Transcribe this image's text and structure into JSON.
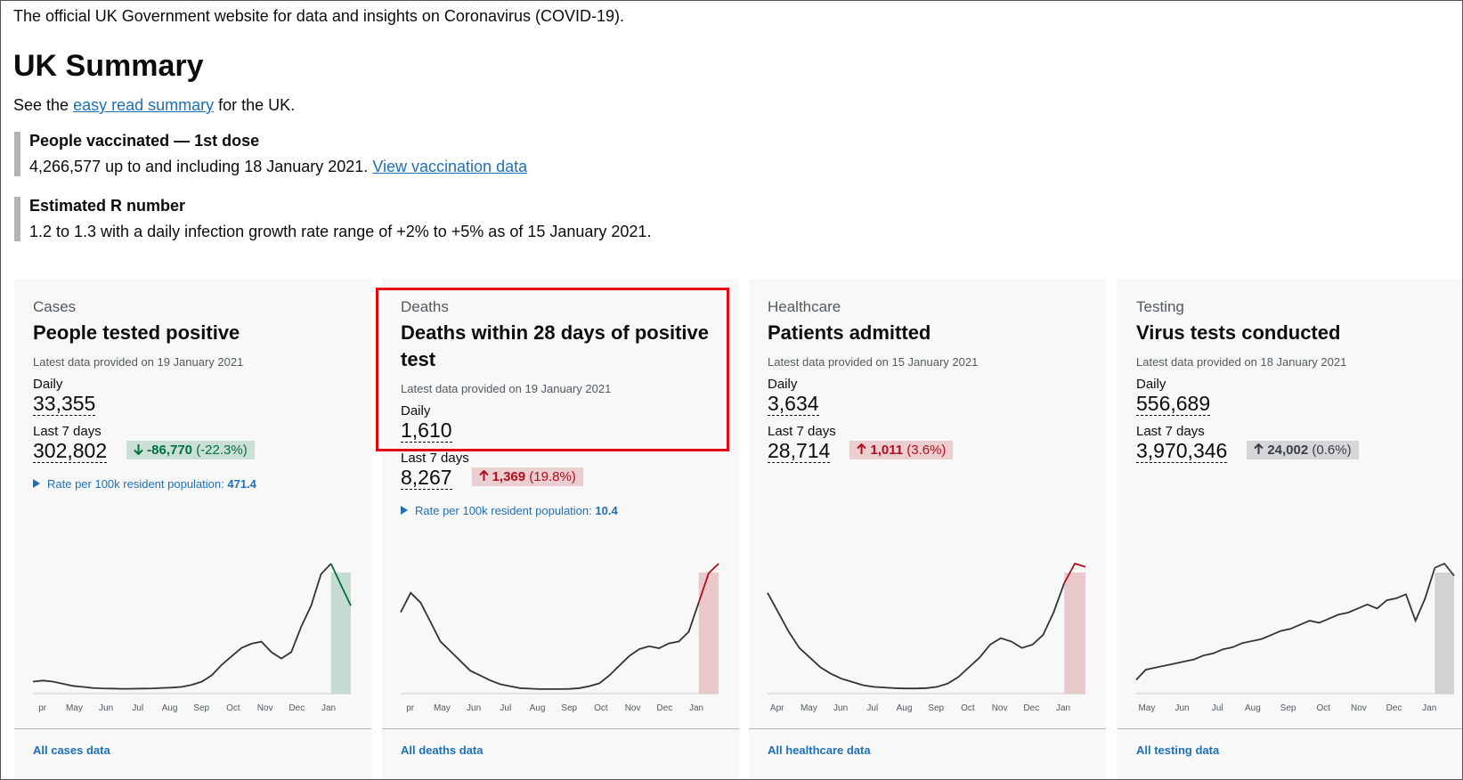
{
  "header": {
    "tagline": "The official UK Government website for data and insights on Coronavirus (COVID-19).",
    "title": "UK Summary",
    "intro_before": "See the",
    "intro_link": "easy read summary",
    "intro_after": "for the UK."
  },
  "notices": [
    {
      "title": "People vaccinated — 1st dose",
      "text": "4,266,577 up to and including 18 January 2021.",
      "link": "View vaccination data"
    },
    {
      "title": "Estimated R number",
      "text": "1.2 to 1.3 with a daily infection growth rate range of +2% to +5% as of 15 January 2021."
    }
  ],
  "cards": [
    {
      "category": "Cases",
      "title": "People tested positive",
      "latest": "Latest data provided on 19 January 2021",
      "daily_label": "Daily",
      "daily": "33,355",
      "week_label": "Last 7 days",
      "week": "302,802",
      "change": "-86,770",
      "change_pct": "(-22.3%)",
      "direction": "down",
      "color": "#00703c",
      "rate_label": "Rate per 100k resident population:",
      "rate_value": "471.4",
      "link": "All cases data",
      "months": [
        "pr",
        "May",
        "Jun",
        "Jul",
        "Aug",
        "Sep",
        "Oct",
        "Nov",
        "Dec",
        "Jan"
      ],
      "trend": [
        4000,
        4500,
        4000,
        3000,
        2000,
        1500,
        1000,
        800,
        700,
        600,
        650,
        700,
        800,
        1000,
        1200,
        1500,
        2500,
        4000,
        7000,
        12000,
        16000,
        20000,
        22000,
        23000,
        18000,
        15000,
        18000,
        30000,
        40000,
        55000,
        60000,
        50000,
        40000
      ]
    },
    {
      "category": "Deaths",
      "title": "Deaths within 28 days of positive test",
      "latest": "Latest data provided on 19 January 2021",
      "daily_label": "Daily",
      "daily": "1,610",
      "week_label": "Last 7 days",
      "week": "8,267",
      "change": "1,369",
      "change_pct": "(19.8%)",
      "direction": "up",
      "color": "#b10e1e",
      "rate_label": "Rate per 100k resident population:",
      "rate_value": "10.4",
      "link": "All deaths data",
      "months": [
        "pr",
        "May",
        "Jun",
        "Jul",
        "Aug",
        "Sep",
        "Oct",
        "Nov",
        "Dec",
        "Jan"
      ],
      "trend": [
        800,
        1000,
        900,
        700,
        500,
        400,
        300,
        200,
        150,
        100,
        60,
        40,
        20,
        15,
        10,
        10,
        10,
        12,
        20,
        40,
        70,
        150,
        250,
        350,
        420,
        450,
        430,
        480,
        500,
        600,
        900,
        1200,
        1300
      ]
    },
    {
      "category": "Healthcare",
      "title": "Patients admitted",
      "latest": "Latest data provided on 15 January 2021",
      "daily_label": "Daily",
      "daily": "3,634",
      "week_label": "Last 7 days",
      "week": "28,714",
      "change": "1,011",
      "change_pct": "(3.6%)",
      "direction": "up",
      "color": "#b10e1e",
      "link": "All healthcare data",
      "months": [
        "Apr",
        "May",
        "Jun",
        "Jul",
        "Aug",
        "Sep",
        "Oct",
        "Nov",
        "Dec",
        "Jan"
      ],
      "trend": [
        3000,
        2400,
        1800,
        1300,
        1000,
        700,
        500,
        350,
        250,
        150,
        100,
        80,
        60,
        50,
        50,
        60,
        100,
        200,
        400,
        700,
        1000,
        1400,
        1600,
        1500,
        1300,
        1400,
        1700,
        2400,
        3300,
        3900,
        3800
      ]
    },
    {
      "category": "Testing",
      "title": "Virus tests conducted",
      "latest": "Latest data provided on 18 January 2021",
      "daily_label": "Daily",
      "daily": "556,689",
      "week_label": "Last 7 days",
      "week": "3,970,346",
      "change": "24,002",
      "change_pct": "(0.6%)",
      "direction": "up",
      "color": "#383f43",
      "link": "All testing data",
      "months": [
        "May",
        "Jun",
        "Jul",
        "Aug",
        "Sep",
        "Oct",
        "Nov",
        "Dec",
        "Jan"
      ],
      "trend": [
        50000,
        100000,
        110000,
        120000,
        130000,
        140000,
        150000,
        170000,
        180000,
        200000,
        210000,
        230000,
        240000,
        250000,
        270000,
        290000,
        300000,
        320000,
        340000,
        330000,
        350000,
        370000,
        380000,
        400000,
        420000,
        400000,
        440000,
        450000,
        470000,
        340000,
        450000,
        600000,
        620000,
        560000
      ]
    }
  ]
}
